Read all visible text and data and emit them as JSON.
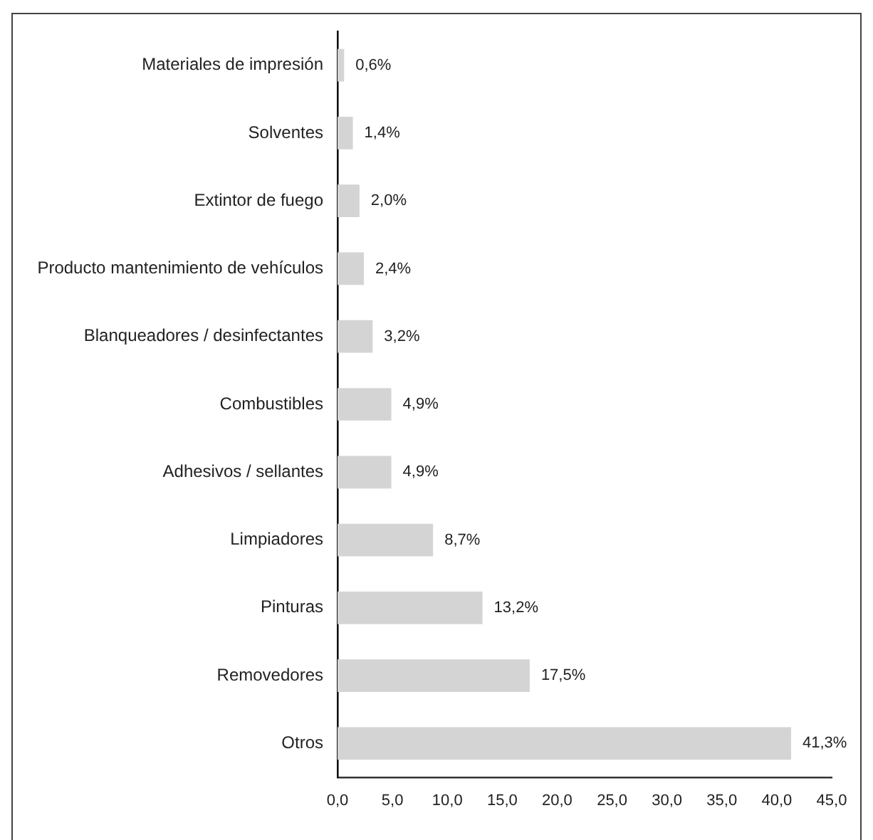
{
  "chart_data": {
    "type": "bar",
    "orientation": "horizontal",
    "categories": [
      "Materiales de impresión",
      "Solventes",
      "Extintor de fuego",
      "Producto mantenimiento de vehículos",
      "Blanqueadores / desinfectantes",
      "Combustibles",
      "Adhesivos / sellantes",
      "Limpiadores",
      "Pinturas",
      "Removedores",
      "Otros"
    ],
    "values": [
      0.6,
      1.4,
      2.0,
      2.4,
      3.2,
      4.9,
      4.9,
      8.7,
      13.2,
      17.5,
      41.3
    ],
    "value_labels": [
      "0,6%",
      "1,4%",
      "2,0%",
      "2,4%",
      "3,2%",
      "4,9%",
      "4,9%",
      "8,7%",
      "13,2%",
      "17,5%",
      "41,3%"
    ],
    "color": "#d4d4d4",
    "xlim": [
      0,
      45
    ],
    "xticks": [
      {
        "value": 0,
        "label": "0,0"
      },
      {
        "value": 5,
        "label": "5,0"
      },
      {
        "value": 10,
        "label": "10,0"
      },
      {
        "value": 15,
        "label": "15,0"
      },
      {
        "value": 20,
        "label": "20,0"
      },
      {
        "value": 25,
        "label": "25,0"
      },
      {
        "value": 30,
        "label": "30,0"
      },
      {
        "value": 35,
        "label": "35,0"
      },
      {
        "value": 40,
        "label": "40,0"
      },
      {
        "value": 45,
        "label": "45,0"
      }
    ]
  }
}
